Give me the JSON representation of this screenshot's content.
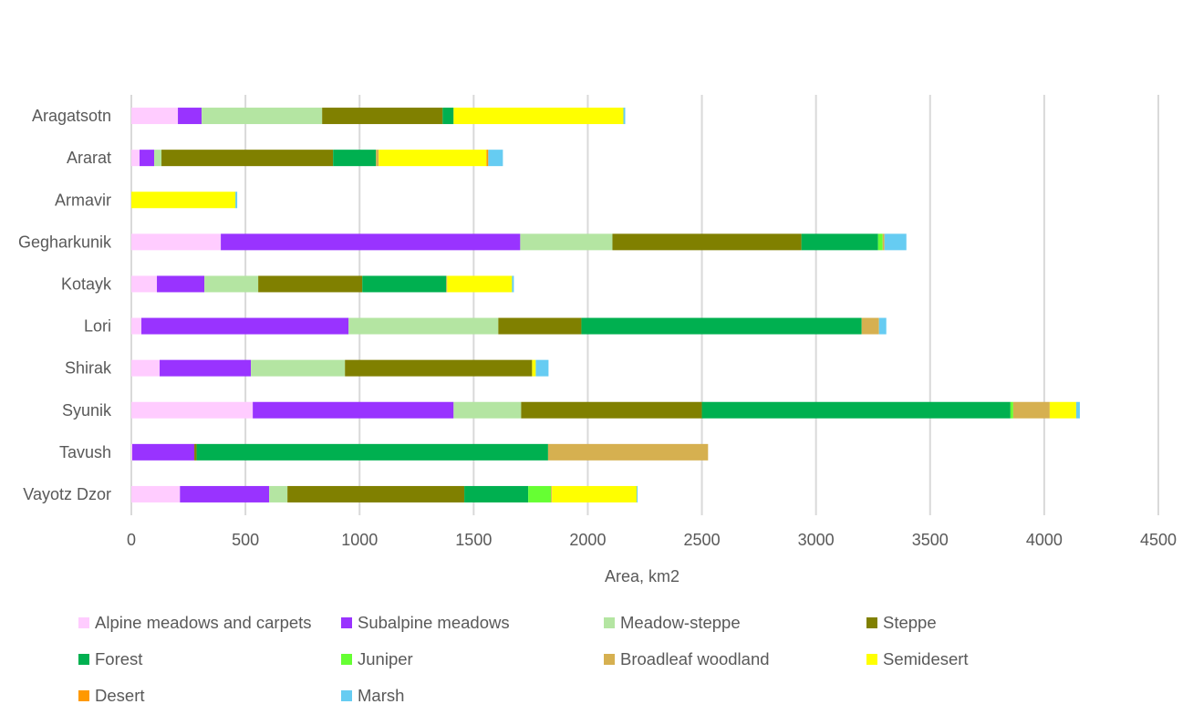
{
  "chart_data": {
    "type": "bar",
    "orientation": "horizontal",
    "stacked": true,
    "title": "",
    "xlabel": "Area, km2",
    "ylabel": "",
    "xlim": [
      0,
      4500
    ],
    "xticks": [
      0,
      500,
      1000,
      1500,
      2000,
      2500,
      3000,
      3500,
      4000,
      4500
    ],
    "xtick_labels": [
      "0",
      "500",
      "1000",
      "1500",
      "2000",
      "2500",
      "3000",
      "3500",
      "4000",
      "4500"
    ],
    "grid": true,
    "legend_position": "bottom",
    "categories": [
      "Aragatsotn",
      "Ararat",
      "Armavir",
      "Gegharkunik",
      "Kotayk",
      "Lori",
      "Shirak",
      "Syunik",
      "Tavush",
      "Vayotz Dzor"
    ],
    "series": [
      {
        "name": "Alpine meadows and carpets",
        "color": "#ffccff",
        "values": [
          204,
          36,
          0,
          392,
          112,
          44,
          124,
          532,
          4,
          213
        ]
      },
      {
        "name": "Subalpine meadows",
        "color": "#9933ff",
        "values": [
          104,
          64,
          0,
          1312,
          208,
          908,
          400,
          880,
          272,
          391
        ]
      },
      {
        "name": "Meadow-steppe",
        "color": "#b4e5a2",
        "values": [
          528,
          32,
          0,
          404,
          236,
          656,
          412,
          296,
          0,
          80
        ]
      },
      {
        "name": "Steppe",
        "color": "#808000",
        "values": [
          528,
          752,
          0,
          828,
          456,
          364,
          820,
          792,
          10,
          775
        ]
      },
      {
        "name": "Forest",
        "color": "#00b050",
        "values": [
          48,
          188,
          0,
          336,
          368,
          1228,
          0,
          1352,
          1540,
          280
        ]
      },
      {
        "name": "Juniper",
        "color": "#66ff33",
        "values": [
          0,
          0,
          0,
          20,
          0,
          0,
          0,
          12,
          0,
          100
        ]
      },
      {
        "name": "Broadleaf woodland",
        "color": "#d6b050",
        "values": [
          0,
          12,
          0,
          8,
          4,
          76,
          0,
          160,
          701,
          4
        ]
      },
      {
        "name": "Semidesert",
        "color": "#ffff00",
        "values": [
          744,
          472,
          456,
          0,
          284,
          0,
          16,
          116,
          0,
          371
        ]
      },
      {
        "name": "Desert",
        "color": "#ff9900",
        "values": [
          0,
          8,
          0,
          0,
          0,
          0,
          0,
          0,
          0,
          0
        ]
      },
      {
        "name": "Marsh",
        "color": "#66ccf2",
        "values": [
          8,
          64,
          8,
          96,
          8,
          32,
          56,
          16,
          0,
          4
        ]
      }
    ]
  }
}
